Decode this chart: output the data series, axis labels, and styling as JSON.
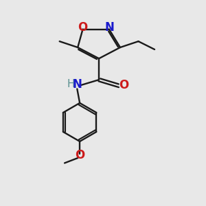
{
  "bg_color": "#e8e8e8",
  "bond_color": "#1a1a1a",
  "N_color": "#1a1acc",
  "O_color": "#cc1a1a",
  "H_color": "#5a9090",
  "line_width": 1.7,
  "font_size": 12,
  "figsize": [
    3.0,
    3.0
  ],
  "dpi": 100,
  "xlim": [
    0,
    10
  ],
  "ylim": [
    0,
    10
  ]
}
